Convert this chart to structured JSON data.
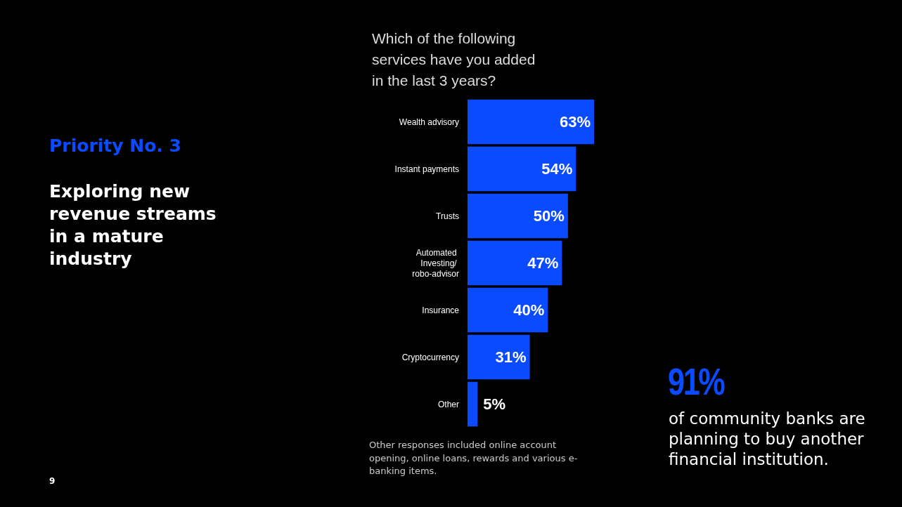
{
  "chart_data": {
    "type": "bar",
    "orientation": "horizontal",
    "title": "Which of the following services have you added in the last 3 years?",
    "categories": [
      "Wealth advisory",
      "Instant payments",
      "Trusts",
      "Automated Investing/ robo-advisor",
      "Insurance",
      "Cryptocurrency",
      "Other"
    ],
    "values": [
      63,
      54,
      50,
      47,
      40,
      31,
      5
    ],
    "color": "#0a4bff",
    "value_labels": [
      "63%",
      "54%",
      "50%",
      "47%",
      "40%",
      "31%",
      "5%"
    ],
    "annotations": [
      "Priority No. 3",
      "Exploring new revenue streams in a mature industry",
      "91%",
      "of community banks are planning to buy another financial institution.",
      "Other responses included online account opening, online loans, rewards and various e-banking items.",
      "9"
    ]
  }
}
